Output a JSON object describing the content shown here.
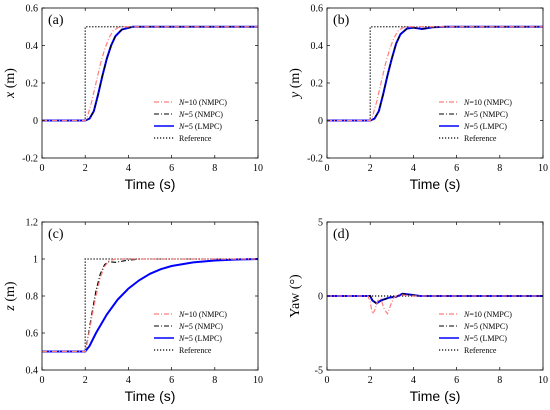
{
  "chart_data": [
    {
      "panel_tag": "(a)",
      "type": "line",
      "ylabel_var": "x",
      "ylabel_unit": " (m)",
      "xlabel": "Time (s)",
      "xlim": [
        0,
        10
      ],
      "ylim": [
        -0.2,
        0.6
      ],
      "xticks": [
        0,
        2,
        4,
        6,
        8,
        10
      ],
      "yticks": [
        -0.2,
        0,
        0.2,
        0.4,
        0.6
      ],
      "ytick_labels": [
        "-0.2",
        "0",
        "0.2",
        "0.4",
        "0.6"
      ],
      "legend_position": "bottom-right",
      "series": [
        {
          "name": "N=10 (NMPC)",
          "color": "#ff7f7f",
          "dash": "dashdot",
          "width": 1.2,
          "points": [
            [
              0,
              0
            ],
            [
              2.0,
              0
            ],
            [
              2.1,
              0.02
            ],
            [
              2.3,
              0.1
            ],
            [
              2.5,
              0.2
            ],
            [
              2.7,
              0.3
            ],
            [
              2.9,
              0.38
            ],
            [
              3.1,
              0.44
            ],
            [
              3.3,
              0.48
            ],
            [
              3.6,
              0.5
            ],
            [
              10,
              0.5
            ]
          ]
        },
        {
          "name": "N=5 (NMPC)",
          "color": "#000000",
          "dash": "dashdot",
          "width": 1.1,
          "points": [
            [
              0,
              0
            ],
            [
              2.0,
              0
            ],
            [
              2.2,
              0.01
            ],
            [
              2.4,
              0.05
            ],
            [
              2.6,
              0.14
            ],
            [
              2.8,
              0.24
            ],
            [
              3.0,
              0.33
            ],
            [
              3.2,
              0.4
            ],
            [
              3.4,
              0.45
            ],
            [
              3.7,
              0.485
            ],
            [
              4.2,
              0.5
            ],
            [
              10,
              0.5
            ]
          ]
        },
        {
          "name": "N=5 (LMPC)",
          "color": "#0000ff",
          "dash": "solid",
          "width": 2.0,
          "points": [
            [
              0,
              0
            ],
            [
              2.0,
              0
            ],
            [
              2.2,
              0.01
            ],
            [
              2.4,
              0.05
            ],
            [
              2.6,
              0.14
            ],
            [
              2.8,
              0.24
            ],
            [
              3.0,
              0.33
            ],
            [
              3.2,
              0.4
            ],
            [
              3.4,
              0.45
            ],
            [
              3.7,
              0.485
            ],
            [
              4.2,
              0.5
            ],
            [
              10,
              0.5
            ]
          ]
        },
        {
          "name": "Reference",
          "color": "#000000",
          "dash": "dotted",
          "width": 1.2,
          "points": [
            [
              0,
              0
            ],
            [
              2.0,
              0
            ],
            [
              2.0,
              0.5
            ],
            [
              10,
              0.5
            ]
          ]
        }
      ]
    },
    {
      "panel_tag": "(b)",
      "type": "line",
      "ylabel_var": "y",
      "ylabel_unit": " (m)",
      "xlabel": "Time (s)",
      "xlim": [
        0,
        10
      ],
      "ylim": [
        -0.2,
        0.6
      ],
      "xticks": [
        0,
        2,
        4,
        6,
        8,
        10
      ],
      "yticks": [
        -0.2,
        0,
        0.2,
        0.4,
        0.6
      ],
      "ytick_labels": [
        "-0.2",
        "0",
        "0.2",
        "0.4",
        "0.6"
      ],
      "legend_position": "bottom-right",
      "series": [
        {
          "name": "N=10 (NMPC)",
          "color": "#ff7f7f",
          "dash": "dashdot",
          "width": 1.2,
          "points": [
            [
              0,
              0
            ],
            [
              2.0,
              0
            ],
            [
              2.1,
              0.02
            ],
            [
              2.3,
              0.1
            ],
            [
              2.5,
              0.2
            ],
            [
              2.7,
              0.3
            ],
            [
              2.9,
              0.38
            ],
            [
              3.1,
              0.44
            ],
            [
              3.3,
              0.48
            ],
            [
              3.6,
              0.5
            ],
            [
              10,
              0.5
            ]
          ]
        },
        {
          "name": "N=5 (NMPC)",
          "color": "#000000",
          "dash": "dashdot",
          "width": 1.1,
          "points": [
            [
              0,
              0
            ],
            [
              2.0,
              0
            ],
            [
              2.2,
              0.01
            ],
            [
              2.4,
              0.05
            ],
            [
              2.6,
              0.14
            ],
            [
              2.8,
              0.24
            ],
            [
              3.0,
              0.33
            ],
            [
              3.2,
              0.41
            ],
            [
              3.4,
              0.46
            ],
            [
              3.7,
              0.49
            ],
            [
              4.0,
              0.495
            ],
            [
              4.4,
              0.488
            ],
            [
              4.9,
              0.497
            ],
            [
              5.5,
              0.5
            ],
            [
              10,
              0.5
            ]
          ]
        },
        {
          "name": "N=5 (LMPC)",
          "color": "#0000ff",
          "dash": "solid",
          "width": 2.0,
          "points": [
            [
              0,
              0
            ],
            [
              2.0,
              0
            ],
            [
              2.2,
              0.01
            ],
            [
              2.4,
              0.05
            ],
            [
              2.6,
              0.14
            ],
            [
              2.8,
              0.24
            ],
            [
              3.0,
              0.33
            ],
            [
              3.2,
              0.41
            ],
            [
              3.4,
              0.46
            ],
            [
              3.7,
              0.49
            ],
            [
              4.0,
              0.495
            ],
            [
              4.4,
              0.488
            ],
            [
              4.9,
              0.497
            ],
            [
              5.5,
              0.5
            ],
            [
              10,
              0.5
            ]
          ]
        },
        {
          "name": "Reference",
          "color": "#000000",
          "dash": "dotted",
          "width": 1.2,
          "points": [
            [
              0,
              0
            ],
            [
              2.0,
              0
            ],
            [
              2.0,
              0.5
            ],
            [
              10,
              0.5
            ]
          ]
        }
      ]
    },
    {
      "panel_tag": "(c)",
      "type": "line",
      "ylabel_var": "z",
      "ylabel_unit": " (m)",
      "xlabel": "Time (s)",
      "xlim": [
        0,
        10
      ],
      "ylim": [
        0.4,
        1.2
      ],
      "xticks": [
        0,
        2,
        4,
        6,
        8,
        10
      ],
      "yticks": [
        0.4,
        0.6,
        0.8,
        1,
        1.2
      ],
      "ytick_labels": [
        "0.4",
        "0.6",
        "0.8",
        "1",
        "1.2"
      ],
      "legend_position": "bottom-right",
      "series": [
        {
          "name": "N=10 (NMPC)",
          "color": "#ff7f7f",
          "dash": "dashdot",
          "width": 1.2,
          "points": [
            [
              0,
              0.5
            ],
            [
              2.0,
              0.5
            ],
            [
              2.1,
              0.55
            ],
            [
              2.3,
              0.68
            ],
            [
              2.5,
              0.8
            ],
            [
              2.7,
              0.9
            ],
            [
              2.9,
              0.96
            ],
            [
              3.1,
              0.99
            ],
            [
              3.4,
              1.0
            ],
            [
              10,
              1.0
            ]
          ]
        },
        {
          "name": "N=5 (NMPC)",
          "color": "#000000",
          "dash": "dashdot",
          "width": 1.1,
          "points": [
            [
              0,
              0.5
            ],
            [
              2.0,
              0.5
            ],
            [
              2.1,
              0.56
            ],
            [
              2.3,
              0.7
            ],
            [
              2.5,
              0.83
            ],
            [
              2.7,
              0.92
            ],
            [
              2.9,
              0.97
            ],
            [
              3.1,
              0.985
            ],
            [
              3.4,
              0.982
            ],
            [
              3.8,
              0.99
            ],
            [
              4.5,
              1.0
            ],
            [
              10,
              1.0
            ]
          ]
        },
        {
          "name": "N=5 (LMPC)",
          "color": "#0000ff",
          "dash": "solid",
          "width": 2.0,
          "points": [
            [
              0,
              0.5
            ],
            [
              2.0,
              0.5
            ],
            [
              2.2,
              0.53
            ],
            [
              2.5,
              0.6
            ],
            [
              3.0,
              0.7
            ],
            [
              3.5,
              0.78
            ],
            [
              4.0,
              0.84
            ],
            [
              4.5,
              0.885
            ],
            [
              5.0,
              0.92
            ],
            [
              5.5,
              0.945
            ],
            [
              6.0,
              0.962
            ],
            [
              7.0,
              0.982
            ],
            [
              8.0,
              0.992
            ],
            [
              9.0,
              0.997
            ],
            [
              10,
              1.0
            ]
          ]
        },
        {
          "name": "Reference",
          "color": "#000000",
          "dash": "dotted",
          "width": 1.2,
          "points": [
            [
              0,
              0.5
            ],
            [
              2.0,
              0.5
            ],
            [
              2.0,
              1.0
            ],
            [
              10,
              1.0
            ]
          ]
        }
      ]
    },
    {
      "panel_tag": "(d)",
      "type": "line",
      "ylabel_var": "Yaw",
      "ylabel_unit": " (°)",
      "ylabel_math": false,
      "xlabel": "Time (s)",
      "xlim": [
        0,
        10
      ],
      "ylim": [
        -5,
        5
      ],
      "xticks": [
        0,
        2,
        4,
        6,
        8,
        10
      ],
      "yticks": [
        -5,
        0,
        5
      ],
      "ytick_labels": [
        "-5",
        "0",
        "5"
      ],
      "legend_position": "bottom-right",
      "series": [
        {
          "name": "N=10 (NMPC)",
          "color": "#ff7f7f",
          "dash": "dashdot",
          "width": 1.2,
          "points": [
            [
              0,
              0
            ],
            [
              1.9,
              0
            ],
            [
              2.0,
              -0.4
            ],
            [
              2.1,
              -1.2
            ],
            [
              2.2,
              -1.0
            ],
            [
              2.35,
              -0.3
            ],
            [
              2.5,
              -0.2
            ],
            [
              2.65,
              -0.9
            ],
            [
              2.8,
              -1.2
            ],
            [
              2.95,
              -0.6
            ],
            [
              3.1,
              -0.1
            ],
            [
              3.3,
              0.1
            ],
            [
              3.6,
              0.05
            ],
            [
              4.0,
              0
            ],
            [
              10,
              0
            ]
          ]
        },
        {
          "name": "N=5 (NMPC)",
          "color": "#000000",
          "dash": "dashdot",
          "width": 1.1,
          "points": [
            [
              0,
              0
            ],
            [
              2.0,
              0
            ],
            [
              2.1,
              -0.3
            ],
            [
              2.3,
              -0.5
            ],
            [
              2.5,
              -0.3
            ],
            [
              2.7,
              -0.2
            ],
            [
              2.9,
              -0.1
            ],
            [
              3.2,
              -0.05
            ],
            [
              3.5,
              0.15
            ],
            [
              3.8,
              0.1
            ],
            [
              4.3,
              0
            ],
            [
              10,
              0
            ]
          ]
        },
        {
          "name": "N=5 (LMPC)",
          "color": "#0000ff",
          "dash": "solid",
          "width": 2.0,
          "points": [
            [
              0,
              0
            ],
            [
              2.0,
              0
            ],
            [
              2.1,
              -0.3
            ],
            [
              2.3,
              -0.5
            ],
            [
              2.5,
              -0.3
            ],
            [
              2.7,
              -0.2
            ],
            [
              2.9,
              -0.1
            ],
            [
              3.2,
              -0.05
            ],
            [
              3.5,
              0.15
            ],
            [
              3.8,
              0.1
            ],
            [
              4.3,
              0
            ],
            [
              10,
              0
            ]
          ]
        },
        {
          "name": "Reference",
          "color": "#000000",
          "dash": "dotted",
          "width": 1.2,
          "points": [
            [
              0,
              0
            ],
            [
              10,
              0
            ]
          ]
        }
      ]
    }
  ]
}
